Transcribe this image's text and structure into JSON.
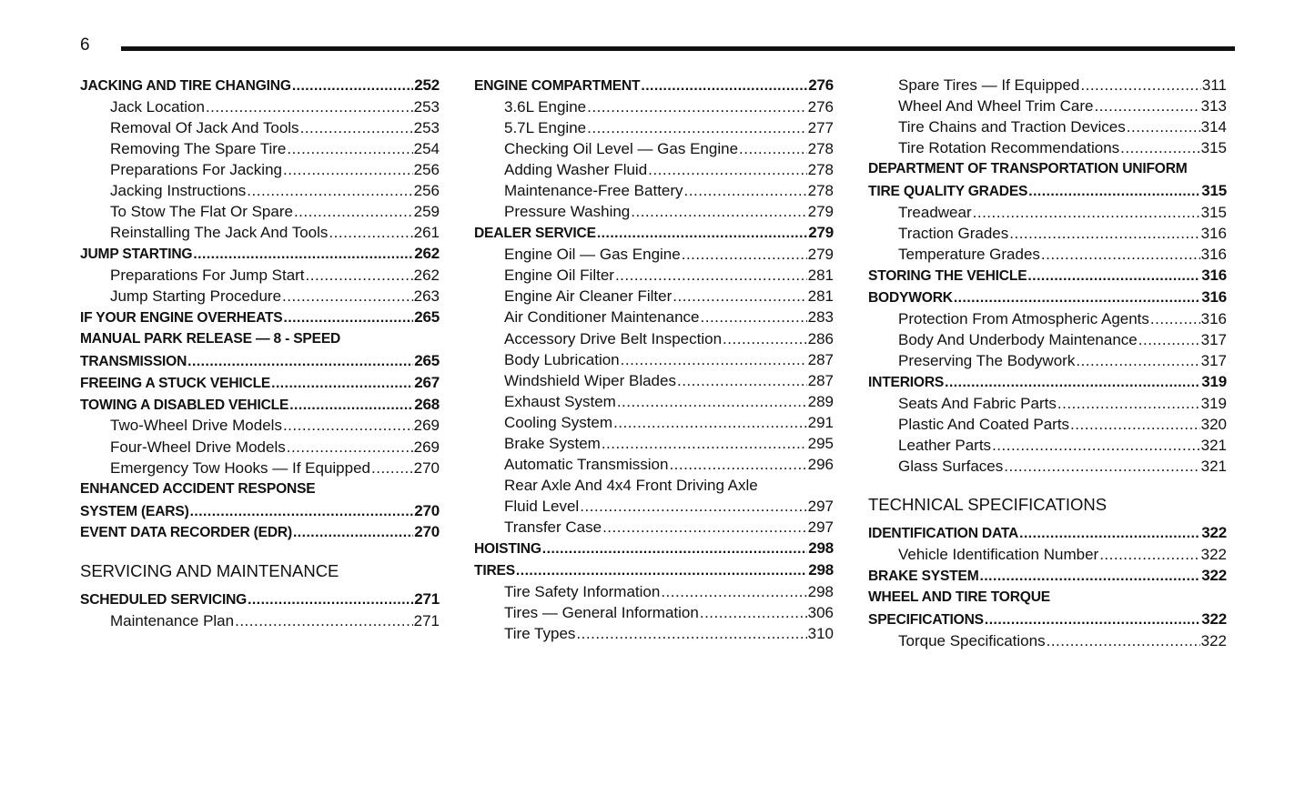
{
  "page_number": "6",
  "columns": [
    {
      "items": [
        {
          "level": "main",
          "label": "JACKING AND TIRE CHANGING",
          "page": "252"
        },
        {
          "level": "sub",
          "label": "Jack Location",
          "page": "253"
        },
        {
          "level": "sub",
          "label": "Removal Of Jack And Tools",
          "page": "253"
        },
        {
          "level": "sub",
          "label": "Removing The Spare Tire",
          "page": "254"
        },
        {
          "level": "sub",
          "label": "Preparations For Jacking",
          "page": "256"
        },
        {
          "level": "sub",
          "label": "Jacking Instructions",
          "page": "256"
        },
        {
          "level": "sub",
          "label": "To Stow The Flat Or Spare",
          "page": "259"
        },
        {
          "level": "sub",
          "label": "Reinstalling The Jack And Tools",
          "page": "261"
        },
        {
          "level": "main",
          "label": "JUMP STARTING",
          "page": "262"
        },
        {
          "level": "sub",
          "label": "Preparations For Jump Start",
          "page": "262"
        },
        {
          "level": "sub",
          "label": "Jump Starting Procedure",
          "page": "263"
        },
        {
          "level": "main",
          "label": "IF YOUR ENGINE OVERHEATS",
          "page": "265"
        },
        {
          "level": "main",
          "label": "MANUAL PARK RELEASE — 8 - SPEED"
        },
        {
          "level": "main",
          "label": "TRANSMISSION",
          "page": "265"
        },
        {
          "level": "main",
          "label": "FREEING A STUCK VEHICLE",
          "page": "267"
        },
        {
          "level": "main",
          "label": "TOWING A DISABLED VEHICLE",
          "page": "268"
        },
        {
          "level": "sub",
          "label": "Two-Wheel Drive Models",
          "page": "269"
        },
        {
          "level": "sub",
          "label": "Four-Wheel Drive Models",
          "page": "269"
        },
        {
          "level": "sub",
          "label": "Emergency Tow Hooks — If Equipped",
          "page": "270"
        },
        {
          "level": "main",
          "label": "ENHANCED ACCIDENT RESPONSE"
        },
        {
          "level": "main",
          "label": "SYSTEM (EARS)",
          "page": "270"
        },
        {
          "level": "main",
          "label": "EVENT DATA RECORDER (EDR)",
          "page": "270"
        },
        {
          "level": "section",
          "label": "SERVICING AND MAINTENANCE"
        },
        {
          "level": "main",
          "label": "SCHEDULED SERVICING",
          "page": "271"
        },
        {
          "level": "sub",
          "label": "Maintenance Plan",
          "page": "271"
        }
      ]
    },
    {
      "items": [
        {
          "level": "main",
          "label": "ENGINE COMPARTMENT",
          "page": "276"
        },
        {
          "level": "sub",
          "label": "3.6L Engine",
          "page": "276"
        },
        {
          "level": "sub",
          "label": "5.7L Engine",
          "page": "277"
        },
        {
          "level": "sub",
          "label": "Checking Oil Level — Gas Engine",
          "page": "278"
        },
        {
          "level": "sub",
          "label": "Adding Washer Fluid",
          "page": "278"
        },
        {
          "level": "sub",
          "label": "Maintenance-Free Battery",
          "page": "278"
        },
        {
          "level": "sub",
          "label": "Pressure Washing",
          "page": "279"
        },
        {
          "level": "main",
          "label": "DEALER SERVICE",
          "page": "279"
        },
        {
          "level": "sub",
          "label": "Engine Oil — Gas Engine",
          "page": "279"
        },
        {
          "level": "sub",
          "label": "Engine Oil Filter",
          "page": "281"
        },
        {
          "level": "sub",
          "label": "Engine Air Cleaner Filter",
          "page": "281"
        },
        {
          "level": "sub",
          "label": "Air Conditioner Maintenance",
          "page": "283"
        },
        {
          "level": "sub",
          "label": "Accessory Drive Belt Inspection",
          "page": "286"
        },
        {
          "level": "sub",
          "label": "Body Lubrication",
          "page": "287"
        },
        {
          "level": "sub",
          "label": "Windshield Wiper Blades",
          "page": "287"
        },
        {
          "level": "sub",
          "label": "Exhaust System",
          "page": "289"
        },
        {
          "level": "sub",
          "label": "Cooling System",
          "page": "291"
        },
        {
          "level": "sub",
          "label": "Brake System",
          "page": "295"
        },
        {
          "level": "sub",
          "label": "Automatic Transmission",
          "page": "296"
        },
        {
          "level": "sub",
          "label": "Rear Axle And 4x4 Front Driving Axle"
        },
        {
          "level": "sub",
          "label": "Fluid Level",
          "page": "297"
        },
        {
          "level": "sub",
          "label": "Transfer Case",
          "page": "297"
        },
        {
          "level": "main",
          "label": "HOISTING",
          "page": "298"
        },
        {
          "level": "main",
          "label": "TIRES",
          "page": "298"
        },
        {
          "level": "sub",
          "label": "Tire Safety Information",
          "page": "298"
        },
        {
          "level": "sub",
          "label": "Tires — General Information",
          "page": "306"
        },
        {
          "level": "sub",
          "label": "Tire Types",
          "page": "310"
        }
      ]
    },
    {
      "items": [
        {
          "level": "sub",
          "label": "Spare Tires — If Equipped",
          "page": "311"
        },
        {
          "level": "sub",
          "label": "Wheel And Wheel Trim Care",
          "page": "313"
        },
        {
          "level": "sub",
          "label": "Tire Chains and Traction Devices",
          "page": "314"
        },
        {
          "level": "sub",
          "label": "Tire Rotation Recommendations",
          "page": "315"
        },
        {
          "level": "main",
          "label": "DEPARTMENT OF TRANSPORTATION UNIFORM"
        },
        {
          "level": "main",
          "label": "TIRE QUALITY GRADES",
          "page": "315"
        },
        {
          "level": "sub",
          "label": "Treadwear",
          "page": "315"
        },
        {
          "level": "sub",
          "label": "Traction Grades",
          "page": "316"
        },
        {
          "level": "sub",
          "label": "Temperature Grades",
          "page": "316"
        },
        {
          "level": "main",
          "label": "STORING THE VEHICLE",
          "page": "316"
        },
        {
          "level": "main",
          "label": "BODYWORK",
          "page": "316"
        },
        {
          "level": "sub",
          "label": "Protection From Atmospheric Agents",
          "page": "316"
        },
        {
          "level": "sub",
          "label": "Body And Underbody Maintenance",
          "page": "317"
        },
        {
          "level": "sub",
          "label": "Preserving The Bodywork",
          "page": "317"
        },
        {
          "level": "main",
          "label": "INTERIORS",
          "page": "319"
        },
        {
          "level": "sub",
          "label": "Seats And Fabric Parts",
          "page": "319"
        },
        {
          "level": "sub",
          "label": "Plastic And Coated Parts",
          "page": "320"
        },
        {
          "level": "sub",
          "label": "Leather Parts",
          "page": "321"
        },
        {
          "level": "sub",
          "label": "Glass Surfaces",
          "page": "321"
        },
        {
          "level": "section",
          "label": "TECHNICAL SPECIFICATIONS"
        },
        {
          "level": "main",
          "label": "IDENTIFICATION DATA",
          "page": "322"
        },
        {
          "level": "sub",
          "label": "Vehicle Identification Number",
          "page": "322"
        },
        {
          "level": "main",
          "label": "BRAKE SYSTEM",
          "page": "322"
        },
        {
          "level": "main",
          "label": "WHEEL AND TIRE TORQUE"
        },
        {
          "level": "main",
          "label": "SPECIFICATIONS",
          "page": "322"
        },
        {
          "level": "sub",
          "label": "Torque Specifications",
          "page": "322"
        }
      ]
    }
  ]
}
